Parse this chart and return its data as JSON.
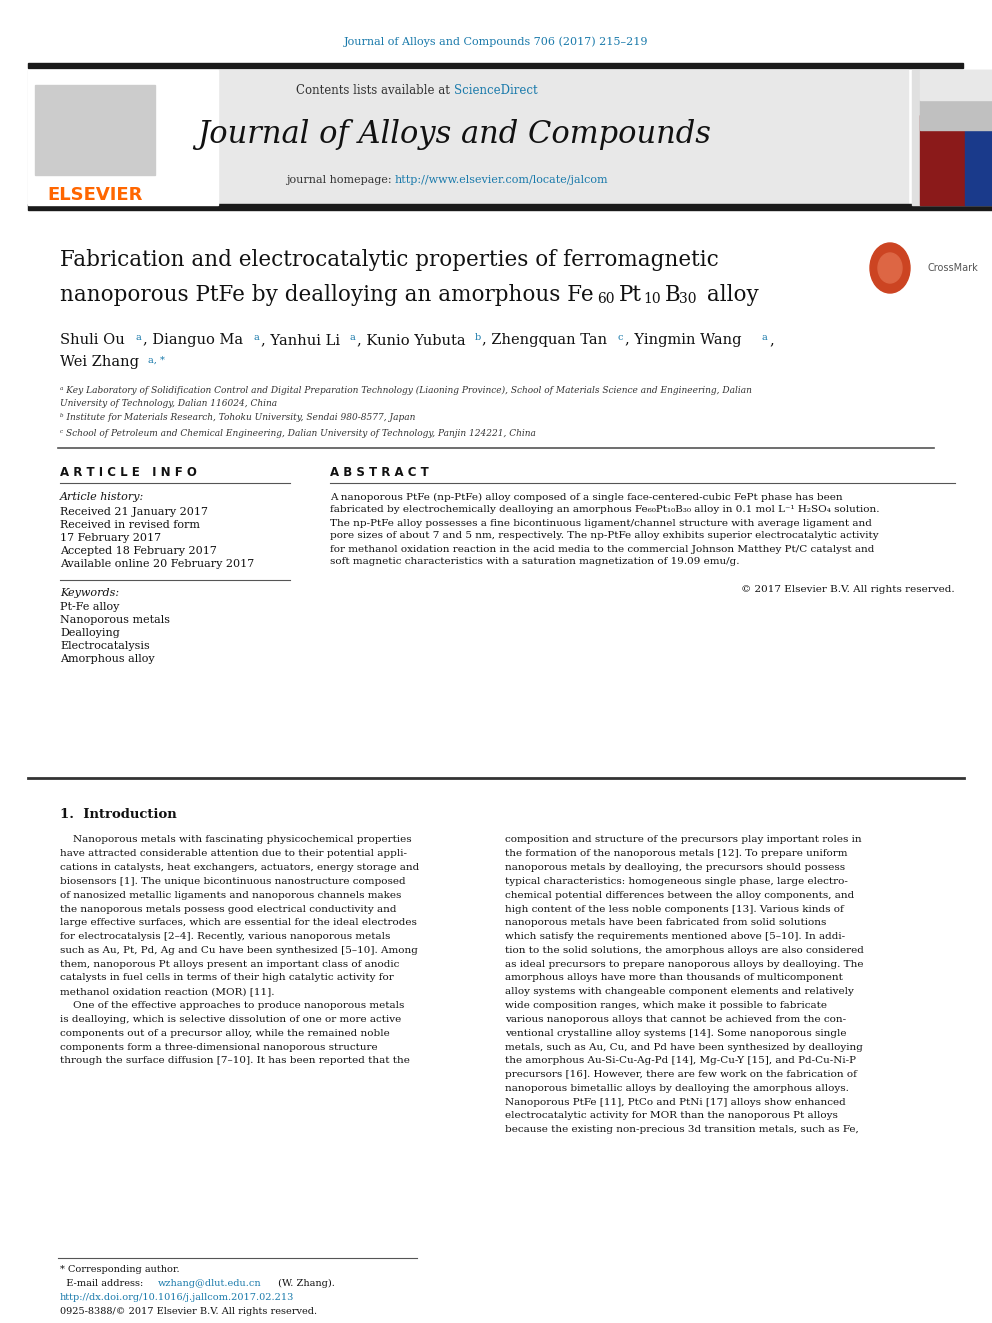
{
  "journal_header_color": "#1a7aab",
  "journal_citation": "Journal of Alloys and Compounds 706 (2017) 215–219",
  "elsevier_color": "#ff6600",
  "journal_name": "Journal of Alloys and Compounds",
  "homepage_link_color": "#1a7aab",
  "sciencedirect_color": "#1a7aab",
  "title_line1": "Fabrication and electrocatalytic properties of ferromagnetic",
  "title_line2": "nanoporous PtFe by dealloying an amorphous Fe",
  "article_info_title": "A R T I C L E   I N F O",
  "abstract_title": "A B S T R A C T",
  "article_history_label": "Article history:",
  "received": "Received 21 January 2017",
  "revised": "Received in revised form",
  "revised2": "17 February 2017",
  "accepted": "Accepted 18 February 2017",
  "available": "Available online 20 February 2017",
  "keywords_label": "Keywords:",
  "keyword1": "Pt-Fe alloy",
  "keyword2": "Nanoporous metals",
  "keyword3": "Dealloying",
  "keyword4": "Electrocatalysis",
  "keyword5": "Amorphous alloy",
  "copyright": "© 2017 Elsevier B.V. All rights reserved.",
  "intro_heading": "1.  Introduction",
  "doi_text": "http://dx.doi.org/10.1016/j.jallcom.2017.02.213",
  "issn_text": "0925-8388/© 2017 Elsevier B.V. All rights reserved.",
  "bg_color": "#ffffff",
  "header_bg": "#e8e8e8",
  "black_bar": "#1a1a1a"
}
